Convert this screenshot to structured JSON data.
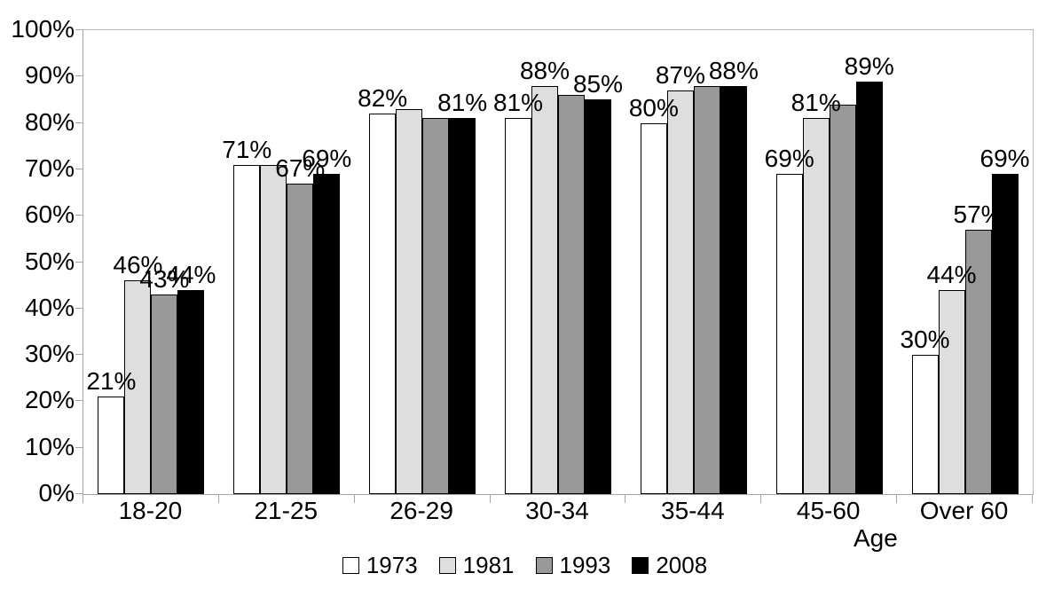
{
  "chart_data": {
    "type": "bar",
    "categories": [
      "18-20",
      "21-25",
      "26-29",
      "30-34",
      "35-44",
      "45-60",
      "Over 60"
    ],
    "xlabel": "Age",
    "ylabel": "",
    "ylim": [
      0,
      100
    ],
    "ytick_labels": [
      "0%",
      "10%",
      "20%",
      "30%",
      "40%",
      "50%",
      "60%",
      "70%",
      "80%",
      "90%",
      "100%"
    ],
    "grid": false,
    "legend_position": "bottom",
    "series": [
      {
        "name": "1973",
        "fill": "#ffffff",
        "values": [
          21,
          71,
          82,
          81,
          80,
          69,
          30
        ],
        "shown_labels": [
          "21%",
          "71%",
          "82%",
          "81%",
          "80%",
          "69%",
          "30%"
        ]
      },
      {
        "name": "1981",
        "fill": "#dedede",
        "values": [
          46,
          71,
          83,
          88,
          87,
          81,
          44
        ],
        "shown_labels": [
          "46%",
          "",
          "",
          "88%",
          "87%",
          "81%",
          "44%"
        ]
      },
      {
        "name": "1993",
        "fill": "#999999",
        "values": [
          43,
          67,
          81,
          86,
          88,
          84,
          57
        ],
        "shown_labels": [
          "43%",
          "67%",
          "",
          "",
          "",
          "",
          "57%"
        ]
      },
      {
        "name": "2008",
        "fill": "#000000",
        "values": [
          44,
          69,
          81,
          85,
          88,
          89,
          69
        ],
        "shown_labels": [
          "44%",
          "69%",
          "81%",
          "85%",
          "88%",
          "89%",
          "69%"
        ]
      }
    ]
  },
  "colors": {
    "axis_line": "#a6a6a6",
    "plot_border": "#b9b9b9",
    "bar_border": "#000000",
    "text": "#000000",
    "background": "#ffffff"
  }
}
